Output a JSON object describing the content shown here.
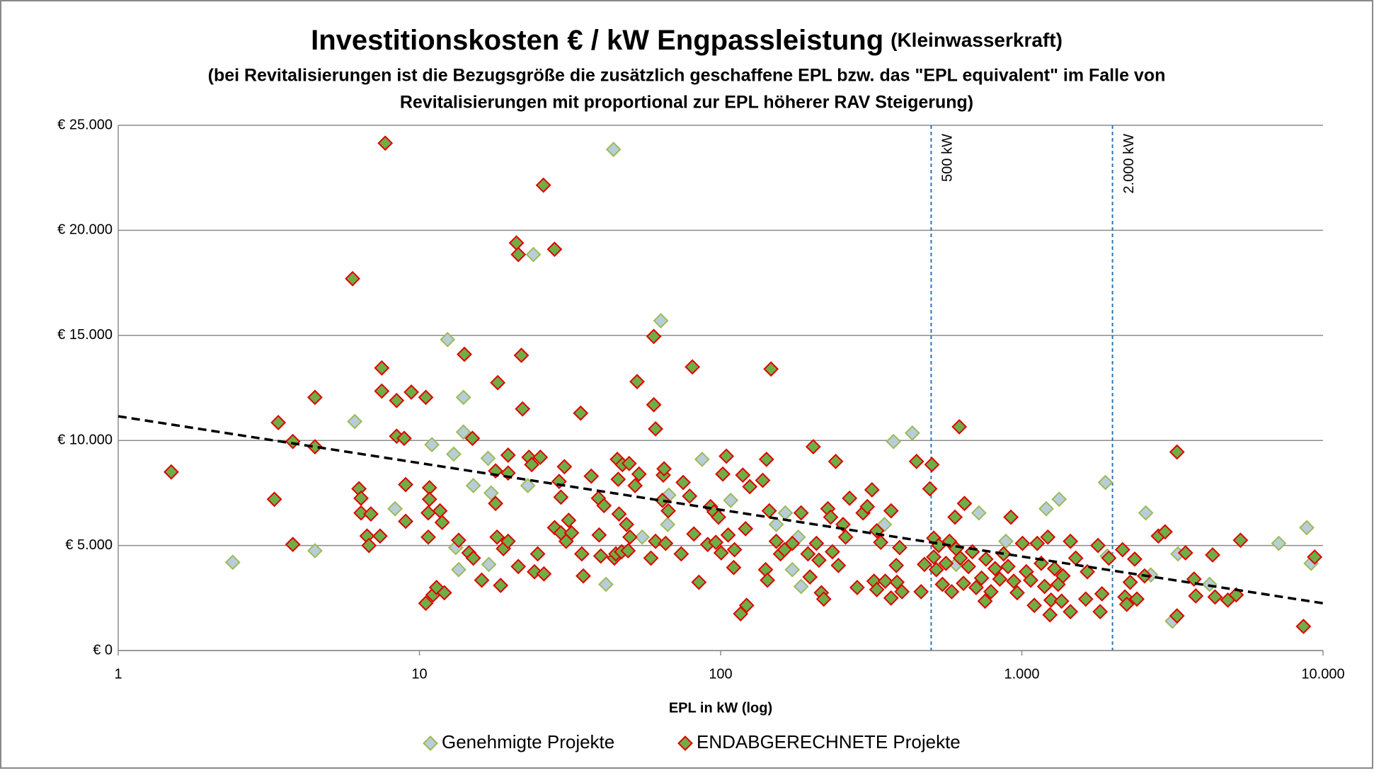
{
  "chart_data": {
    "type": "scatter",
    "title": "Investitionskosten  € / kW Engpassleistung",
    "title_note": "(Kleinwasserkraft)",
    "subtitle": [
      "(bei Revitalisierungen ist die Bezugsgröße die zusätzlich geschaffene EPL bzw. das \"EPL equivalent\" im Falle von",
      "Revitalisierungen mit proportional zur EPL höherer RAV Steigerung)"
    ],
    "xlabel": "EPL in kW (log)",
    "xlog": true,
    "xlim": [
      1,
      10000
    ],
    "xticks": [
      1,
      10,
      100,
      {
        "value": 1000,
        "label": "1.000"
      },
      {
        "value": 10000,
        "label": "10.000"
      }
    ],
    "ylim": [
      0,
      25000
    ],
    "yticks": [
      {
        "value": 0,
        "label": "€ 0"
      },
      {
        "value": 5000,
        "label": "€ 5.000"
      },
      {
        "value": 10000,
        "label": "€ 10.000"
      },
      {
        "value": 15000,
        "label": "€ 15.000"
      },
      {
        "value": 20000,
        "label": "€ 20.000"
      },
      {
        "value": 25000,
        "label": "€ 25.000"
      }
    ],
    "grid": true,
    "legend": "bottom",
    "vlines": [
      {
        "x": 500,
        "label": "500 kW",
        "color": "#2e75b6"
      },
      {
        "x": 2000,
        "label": "2.000 kW",
        "color": "#2e75b6"
      }
    ],
    "trendline": {
      "x": [
        1,
        10000
      ],
      "y": [
        11150,
        2250
      ],
      "color": "#000000"
    },
    "series": [
      {
        "name": "Genehmigte Projekte",
        "color": "#b9cdd9",
        "edgecolor": "#9bbb59",
        "x": [
          2.4,
          4.5,
          6.1,
          8.3,
          11.0,
          12.4,
          13.0,
          13.2,
          13.5,
          14.0,
          14.0,
          15.1,
          16.9,
          17.0,
          17.3,
          22.9,
          23.9,
          41.6,
          44.1,
          54.9,
          63.3,
          66.7,
          67.3,
          86.8,
          108,
          153,
          164,
          173,
          181,
          185,
          350,
          375,
          433,
          605,
          720,
          885,
          1205,
          1330,
          1895,
          1920,
          2580,
          2680,
          3160,
          3300,
          4200,
          7130,
          8830,
          9130
        ],
        "values": [
          4200,
          4750,
          10900,
          6750,
          9800,
          14800,
          9350,
          4900,
          3850,
          12050,
          10400,
          7850,
          9150,
          4100,
          7500,
          7850,
          18850,
          3150,
          23850,
          5400,
          15700,
          6000,
          7400,
          9100,
          7150,
          6000,
          6550,
          3850,
          5400,
          3050,
          6000,
          9950,
          10350,
          4100,
          6550,
          5200,
          6750,
          7200,
          8000,
          4500,
          6550,
          3600,
          1400,
          4600,
          3150,
          5100,
          5850,
          4150
        ]
      },
      {
        "name": "ENDABGERECHNETE Projekte",
        "color": "#70ad47",
        "edgecolor": "#e00000",
        "x": [
          1.5,
          3.3,
          3.4,
          3.8,
          3.8,
          4.5,
          4.5,
          6.0,
          6.3,
          6.4,
          6.4,
          6.7,
          6.8,
          6.9,
          7.4,
          7.5,
          7.5,
          7.7,
          8.4,
          8.4,
          8.9,
          9.0,
          9.0,
          9.4,
          10.5,
          10.5,
          10.7,
          10.8,
          10.8,
          10.7,
          11.1,
          11.4,
          11.7,
          11.9,
          12.1,
          13.5,
          14.1,
          14.6,
          15.0,
          15.1,
          16.1,
          17.9,
          17.9,
          18.1,
          18.2,
          18.6,
          19.0,
          19.7,
          19.7,
          19.7,
          21.0,
          21.3,
          21.3,
          21.8,
          22.0,
          23.1,
          23.6,
          24.1,
          24.7,
          25.2,
          25.8,
          25.9,
          28.1,
          28.1,
          29.1,
          29.5,
          29.5,
          30.3,
          30.7,
          31.3,
          32.0,
          34.3,
          34.6,
          35.0,
          37.2,
          39.3,
          39.5,
          40.0,
          41.0,
          44.4,
          44.9,
          45.4,
          45.7,
          46.0,
          46.9,
          47.2,
          48.7,
          49.3,
          49.7,
          50.0,
          52.0,
          52.8,
          53.6,
          58.7,
          60.0,
          60.0,
          60.8,
          60.8,
          64.1,
          64.5,
          64.9,
          65.7,
          67.0,
          74.0,
          75.1,
          78.9,
          80.6,
          81.5,
          84.7,
          90.6,
          92.6,
          95.1,
          96.4,
          98.4,
          100.4,
          101.7,
          104.5,
          105.9,
          110.5,
          111.2,
          116.5,
          118.5,
          121,
          122,
          125,
          138,
          141,
          142,
          143,
          145,
          147,
          153,
          158,
          163,
          173,
          185,
          195,
          198,
          203,
          208,
          212,
          216,
          220,
          227,
          232,
          235,
          241,
          246,
          255,
          260,
          268,
          284,
          297,
          307,
          318,
          323,
          330,
          330,
          340,
          352,
          368,
          368,
          383,
          385,
          393,
          400,
          447,
          463,
          475,
          495,
          503,
          510,
          510,
          520,
          530,
          545,
          560,
          575,
          585,
          600,
          605,
          620,
          625,
          640,
          645,
          665,
          685,
          705,
          735,
          755,
          760,
          790,
          815,
          845,
          870,
          900,
          920,
          940,
          965,
          1005,
          1035,
          1070,
          1100,
          1125,
          1160,
          1190,
          1220,
          1240,
          1250,
          1285,
          1320,
          1355,
          1370,
          1450,
          1450,
          1510,
          1630,
          1650,
          1790,
          1820,
          1845,
          1945,
          2160,
          2200,
          2230,
          2290,
          2370,
          2410,
          2555,
          2840,
          2990,
          3275,
          3275,
          3495,
          3730,
          3780,
          4300,
          4380,
          4830,
          5150,
          5320,
          8610,
          9380
        ],
        "values": [
          8500,
          7200,
          10850,
          9950,
          5050,
          12050,
          9700,
          17700,
          7700,
          6550,
          7250,
          5450,
          5000,
          6500,
          5450,
          13450,
          12350,
          24150,
          11900,
          10200,
          10100,
          7900,
          6150,
          12300,
          12050,
          2250,
          6550,
          7750,
          7200,
          5400,
          2650,
          3000,
          6650,
          6100,
          2750,
          5250,
          14100,
          4650,
          10100,
          4400,
          3350,
          8550,
          7000,
          5400,
          12750,
          3100,
          4850,
          5200,
          8450,
          9300,
          19400,
          18850,
          4000,
          14050,
          11500,
          9200,
          8850,
          3750,
          4600,
          9200,
          22150,
          3650,
          19100,
          5850,
          8050,
          7300,
          5600,
          8750,
          5200,
          6200,
          5600,
          11300,
          4600,
          3550,
          8300,
          7250,
          5500,
          4500,
          6900,
          4400,
          4600,
          9100,
          8150,
          6500,
          4700,
          8850,
          6000,
          4750,
          8900,
          5400,
          7850,
          12800,
          8400,
          4400,
          11700,
          14950,
          10550,
          5200,
          7150,
          8350,
          8650,
          5100,
          6650,
          4600,
          8000,
          7350,
          13500,
          5550,
          3250,
          5050,
          6850,
          6600,
          5150,
          6350,
          4650,
          8400,
          9250,
          5500,
          3950,
          4800,
          1750,
          8350,
          5800,
          2150,
          7800,
          8100,
          3850,
          9100,
          3350,
          6650,
          13400,
          5200,
          4600,
          4800,
          5100,
          6550,
          4600,
          3500,
          9700,
          5100,
          4300,
          2750,
          2450,
          6750,
          6350,
          4700,
          9000,
          4050,
          6000,
          5400,
          7250,
          3000,
          6550,
          6850,
          7650,
          3300,
          5700,
          2900,
          5150,
          3300,
          2500,
          6650,
          4050,
          3250,
          4900,
          2800,
          9000,
          2800,
          4100,
          7700,
          8850,
          5350,
          4450,
          3850,
          5000,
          3150,
          4150,
          5200,
          2800,
          6350,
          4850,
          10650,
          4400,
          3200,
          7000,
          4000,
          4700,
          3000,
          3450,
          2350,
          4350,
          2800,
          3900,
          3400,
          4600,
          4000,
          6350,
          3300,
          2750,
          5100,
          3750,
          3350,
          2150,
          5100,
          4150,
          3050,
          5400,
          1700,
          2400,
          3900,
          3150,
          2350,
          3550,
          5200,
          1850,
          4400,
          2450,
          3750,
          5000,
          1850,
          2700,
          4400,
          4800,
          2550,
          2200,
          3250,
          4350,
          2450,
          3550,
          5450,
          5650,
          9450,
          1650,
          4650,
          3400,
          2600,
          4550,
          2550,
          2400,
          2650,
          5250,
          1150,
          4450
        ]
      }
    ]
  }
}
